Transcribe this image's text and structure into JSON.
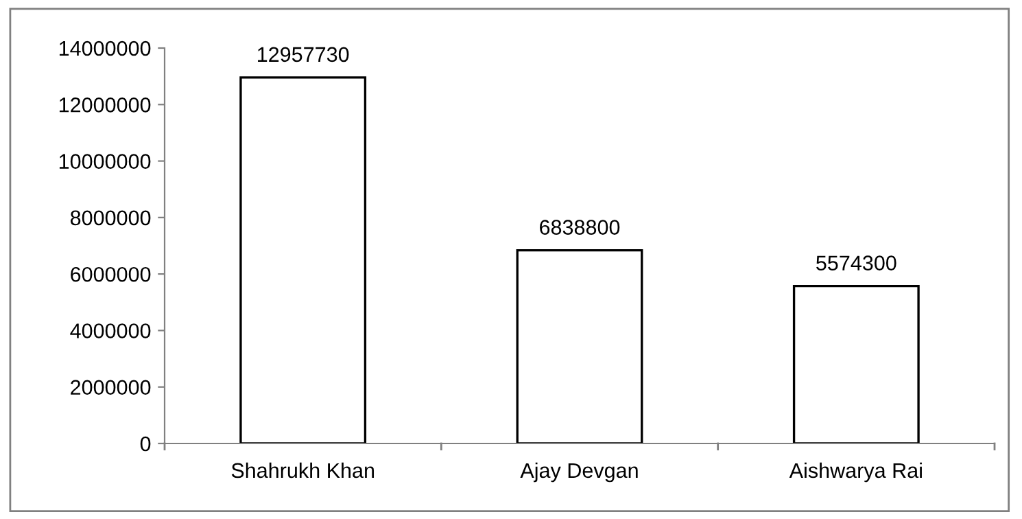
{
  "chart_data": {
    "type": "bar",
    "categories": [
      "Shahrukh Khan",
      "Ajay Devgan",
      "Aishwarya Rai"
    ],
    "values": [
      12957730,
      6838800,
      5574300
    ],
    "color": "#ffffff",
    "ylim": [
      0,
      14000000
    ],
    "yticks": [
      0,
      2000000,
      4000000,
      6000000,
      8000000,
      10000000,
      12000000,
      14000000
    ],
    "data_labels": true,
    "grid": false,
    "legend": false
  }
}
